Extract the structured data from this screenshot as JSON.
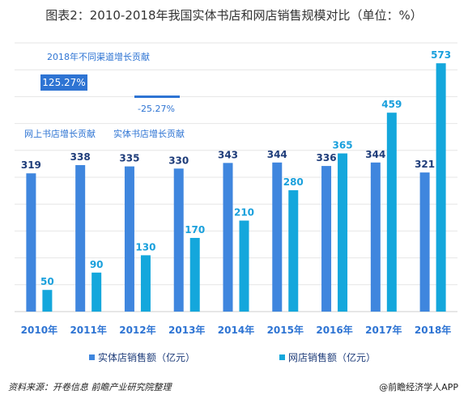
{
  "title": "图表2：2010-2018年我国实体书店和网店销售规模对比（单位：%）",
  "annotations": {
    "header": "2018年不同渠道增长贡献",
    "online_value": "125.27%",
    "physical_value": "-25.27%",
    "online_label": "网上书店增长贡献",
    "physical_label": "实体书店增长贡献"
  },
  "colors": {
    "physical": "#3f86de",
    "online": "#14a7dc",
    "label_dark": "#1f3d7a",
    "label_light": "#1aa0dc"
  },
  "chart_data": {
    "type": "bar",
    "categories": [
      "2010年",
      "2011年",
      "2012年",
      "2013年",
      "2014年",
      "2015年",
      "2016年",
      "2017年",
      "2018年"
    ],
    "series": [
      {
        "name": "实体店销售额（亿元）",
        "values": [
          319,
          338,
          335,
          330,
          343,
          344,
          336,
          344,
          321
        ]
      },
      {
        "name": "网店销售额（亿元）",
        "values": [
          50,
          90,
          130,
          170,
          210,
          280,
          365,
          459,
          573
        ]
      }
    ],
    "title": "图表2：2010-2018年我国实体书店和网店销售规模对比（单位：%）",
    "ylim": [
      0,
      620
    ],
    "grid": true,
    "legend": "bottom"
  },
  "legend": {
    "physical": "实体店销售额（亿元）",
    "online": "网店销售额（亿元）"
  },
  "source": "资料来源：开卷信息 前瞻产业研究院整理",
  "logo": "@前瞻经济学人APP"
}
